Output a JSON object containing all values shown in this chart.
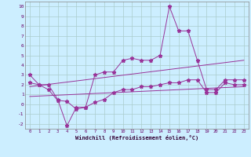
{
  "xlabel": "Windchill (Refroidissement éolien,°C)",
  "bg_color": "#cceeff",
  "grid_color": "#aacccc",
  "line_color": "#993399",
  "xlim": [
    -0.5,
    23.5
  ],
  "ylim": [
    -2.5,
    10.5
  ],
  "xticks": [
    0,
    1,
    2,
    3,
    4,
    5,
    6,
    7,
    8,
    9,
    10,
    11,
    12,
    13,
    14,
    15,
    16,
    17,
    18,
    19,
    20,
    21,
    22,
    23
  ],
  "yticks": [
    -2,
    -1,
    0,
    1,
    2,
    3,
    4,
    5,
    6,
    7,
    8,
    9,
    10
  ],
  "series1_x": [
    0,
    1,
    2,
    3,
    4,
    5,
    6,
    7,
    8,
    9,
    10,
    11,
    12,
    13,
    14,
    15,
    16,
    17,
    18,
    19,
    20,
    21,
    22,
    23
  ],
  "series1_y": [
    3.0,
    2.0,
    2.0,
    0.5,
    -2.2,
    -0.3,
    -0.3,
    3.0,
    3.3,
    3.3,
    4.5,
    4.7,
    4.5,
    4.5,
    5.0,
    10.0,
    7.5,
    7.5,
    4.5,
    1.5,
    1.5,
    2.5,
    2.5,
    2.5
  ],
  "series2_x": [
    0,
    1,
    2,
    3,
    4,
    5,
    6,
    7,
    8,
    9,
    10,
    11,
    12,
    13,
    14,
    15,
    16,
    17,
    18,
    19,
    20,
    21,
    22,
    23
  ],
  "series2_y": [
    2.2,
    2.0,
    1.5,
    0.4,
    0.3,
    -0.5,
    -0.3,
    0.2,
    0.5,
    1.2,
    1.5,
    1.5,
    1.8,
    1.8,
    2.0,
    2.2,
    2.2,
    2.5,
    2.5,
    1.2,
    1.2,
    2.2,
    2.0,
    2.0
  ],
  "series3_x": [
    0,
    23
  ],
  "series3_y": [
    1.8,
    4.5
  ],
  "series4_x": [
    0,
    23
  ],
  "series4_y": [
    0.8,
    1.8
  ]
}
